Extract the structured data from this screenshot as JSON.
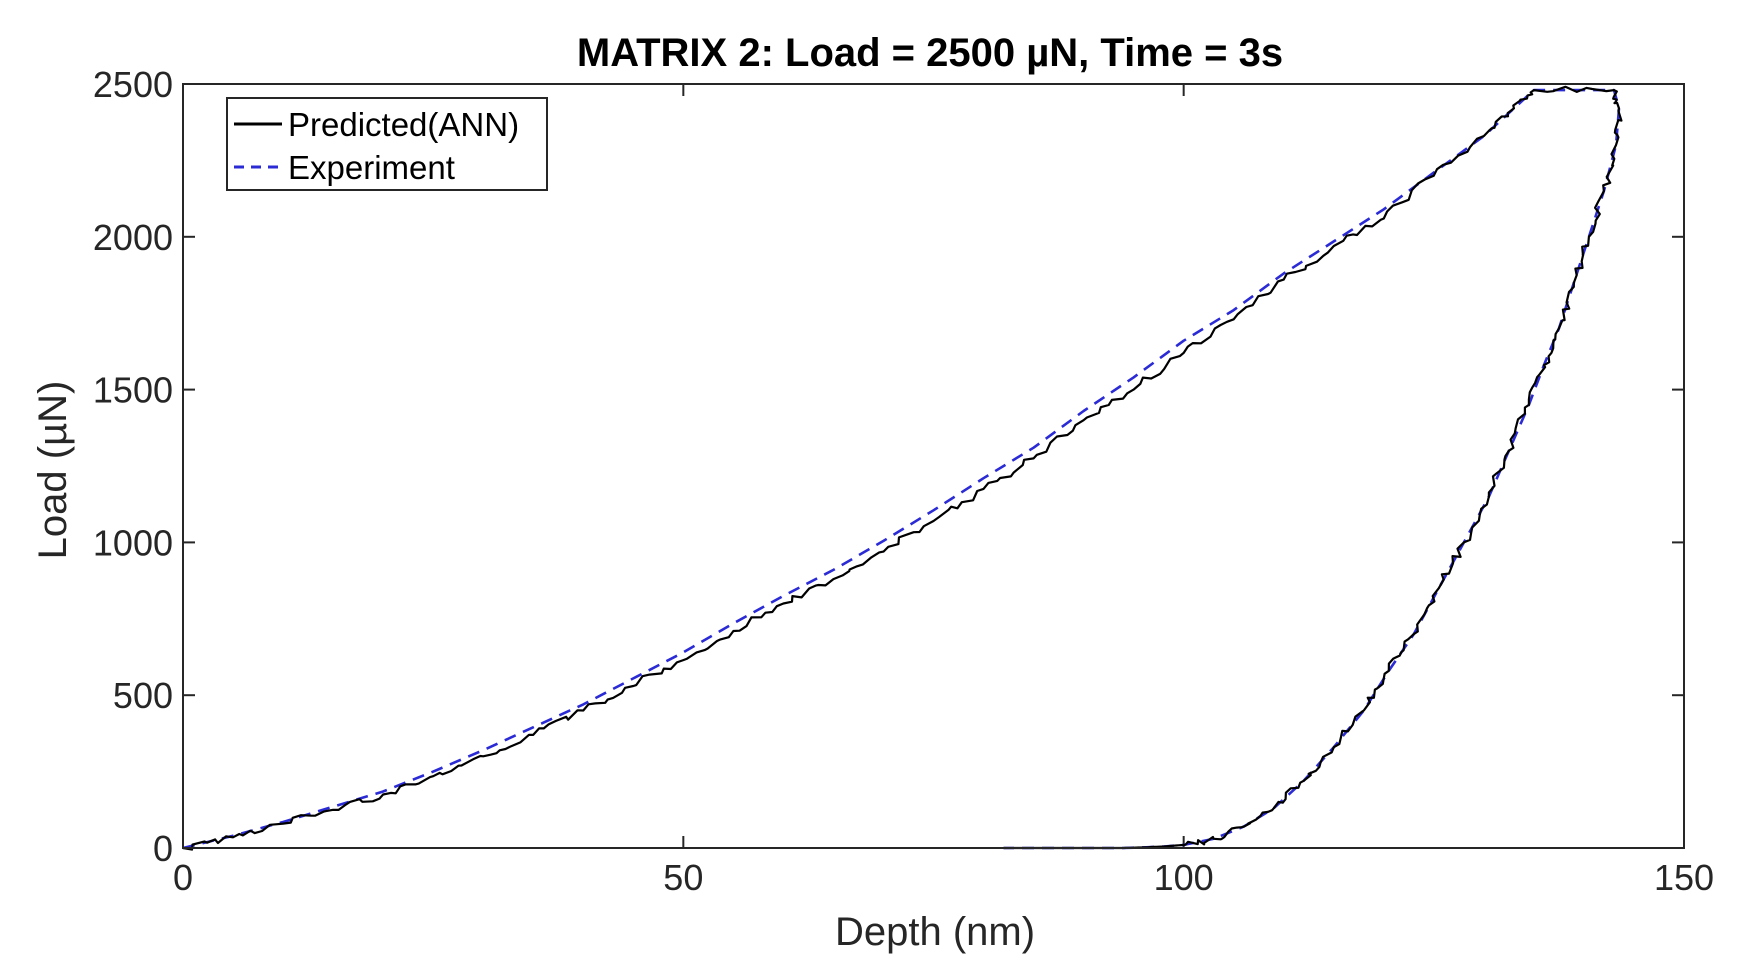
{
  "chart_data": {
    "type": "line",
    "title": "MATRIX 2: Load = 2500 µN, Time =  3s",
    "xlabel": "Depth (nm)",
    "ylabel": "Load (µN)",
    "xlim": [
      0,
      150
    ],
    "ylim": [
      0,
      2500
    ],
    "xticks": [
      0,
      50,
      100,
      150
    ],
    "yticks": [
      0,
      500,
      1000,
      1500,
      2000,
      2500
    ],
    "xtick_labels": [
      "0",
      "50",
      "100",
      "150"
    ],
    "ytick_labels": [
      "0",
      "500",
      "1000",
      "1500",
      "2000",
      "2500"
    ],
    "grid": false,
    "legend_position": "top-left",
    "series": [
      {
        "name": "Predicted(ANN)",
        "color": "#000000",
        "style": "solid",
        "noisy": true,
        "points": [
          [
            0,
            0
          ],
          [
            5,
            35
          ],
          [
            10,
            80
          ],
          [
            15,
            125
          ],
          [
            20,
            175
          ],
          [
            25,
            235
          ],
          [
            30,
            300
          ],
          [
            35,
            370
          ],
          [
            40,
            450
          ],
          [
            45,
            530
          ],
          [
            50,
            615
          ],
          [
            55,
            710
          ],
          [
            60,
            800
          ],
          [
            65,
            880
          ],
          [
            70,
            970
          ],
          [
            75,
            1070
          ],
          [
            80,
            1175
          ],
          [
            85,
            1275
          ],
          [
            90,
            1400
          ],
          [
            95,
            1500
          ],
          [
            100,
            1620
          ],
          [
            105,
            1730
          ],
          [
            110,
            1860
          ],
          [
            115,
            1970
          ],
          [
            120,
            2060
          ],
          [
            125,
            2200
          ],
          [
            130,
            2330
          ],
          [
            133,
            2420
          ],
          [
            135,
            2480
          ],
          [
            143,
            2480
          ],
          [
            143.5,
            2420
          ],
          [
            143.2,
            2300
          ],
          [
            142,
            2150
          ],
          [
            140.5,
            2000
          ],
          [
            139,
            1850
          ],
          [
            137.5,
            1700
          ],
          [
            136,
            1580
          ],
          [
            134.5,
            1450
          ],
          [
            132.5,
            1300
          ],
          [
            130.5,
            1150
          ],
          [
            128,
            1000
          ],
          [
            125.5,
            850
          ],
          [
            123,
            700
          ],
          [
            120.5,
            580
          ],
          [
            118,
            450
          ],
          [
            115,
            330
          ],
          [
            112,
            220
          ],
          [
            109,
            130
          ],
          [
            106,
            70
          ],
          [
            103,
            30
          ],
          [
            100,
            10
          ],
          [
            98,
            5
          ],
          [
            96,
            2
          ],
          [
            94,
            0
          ],
          [
            90,
            0
          ],
          [
            85,
            0
          ],
          [
            82,
            0
          ]
        ]
      },
      {
        "name": "Experiment",
        "color": "#2b2bd6",
        "style": "dashed",
        "noisy": false,
        "points": [
          [
            0,
            0
          ],
          [
            5,
            40
          ],
          [
            10,
            85
          ],
          [
            15,
            135
          ],
          [
            20,
            185
          ],
          [
            25,
            250
          ],
          [
            30,
            320
          ],
          [
            35,
            395
          ],
          [
            40,
            470
          ],
          [
            45,
            555
          ],
          [
            50,
            640
          ],
          [
            55,
            735
          ],
          [
            60,
            825
          ],
          [
            65,
            910
          ],
          [
            70,
            1005
          ],
          [
            75,
            1105
          ],
          [
            80,
            1210
          ],
          [
            85,
            1310
          ],
          [
            90,
            1430
          ],
          [
            95,
            1540
          ],
          [
            100,
            1660
          ],
          [
            105,
            1760
          ],
          [
            110,
            1880
          ],
          [
            115,
            1985
          ],
          [
            120,
            2090
          ],
          [
            125,
            2210
          ],
          [
            130,
            2330
          ],
          [
            133,
            2420
          ],
          [
            135,
            2480
          ],
          [
            143,
            2480
          ],
          [
            143.5,
            2420
          ],
          [
            143.2,
            2300
          ],
          [
            142,
            2150
          ],
          [
            140.5,
            2000
          ],
          [
            139,
            1850
          ],
          [
            137.5,
            1700
          ],
          [
            136,
            1580
          ],
          [
            134.5,
            1450
          ],
          [
            132.5,
            1300
          ],
          [
            130.5,
            1150
          ],
          [
            128,
            1000
          ],
          [
            125.5,
            850
          ],
          [
            123,
            700
          ],
          [
            120.5,
            580
          ],
          [
            118,
            450
          ],
          [
            115,
            330
          ],
          [
            112,
            220
          ],
          [
            109,
            130
          ],
          [
            106,
            70
          ],
          [
            103,
            30
          ],
          [
            100,
            10
          ],
          [
            98,
            5
          ],
          [
            96,
            2
          ],
          [
            94,
            0
          ],
          [
            90,
            0
          ],
          [
            85,
            0
          ],
          [
            82,
            0
          ]
        ]
      }
    ]
  }
}
